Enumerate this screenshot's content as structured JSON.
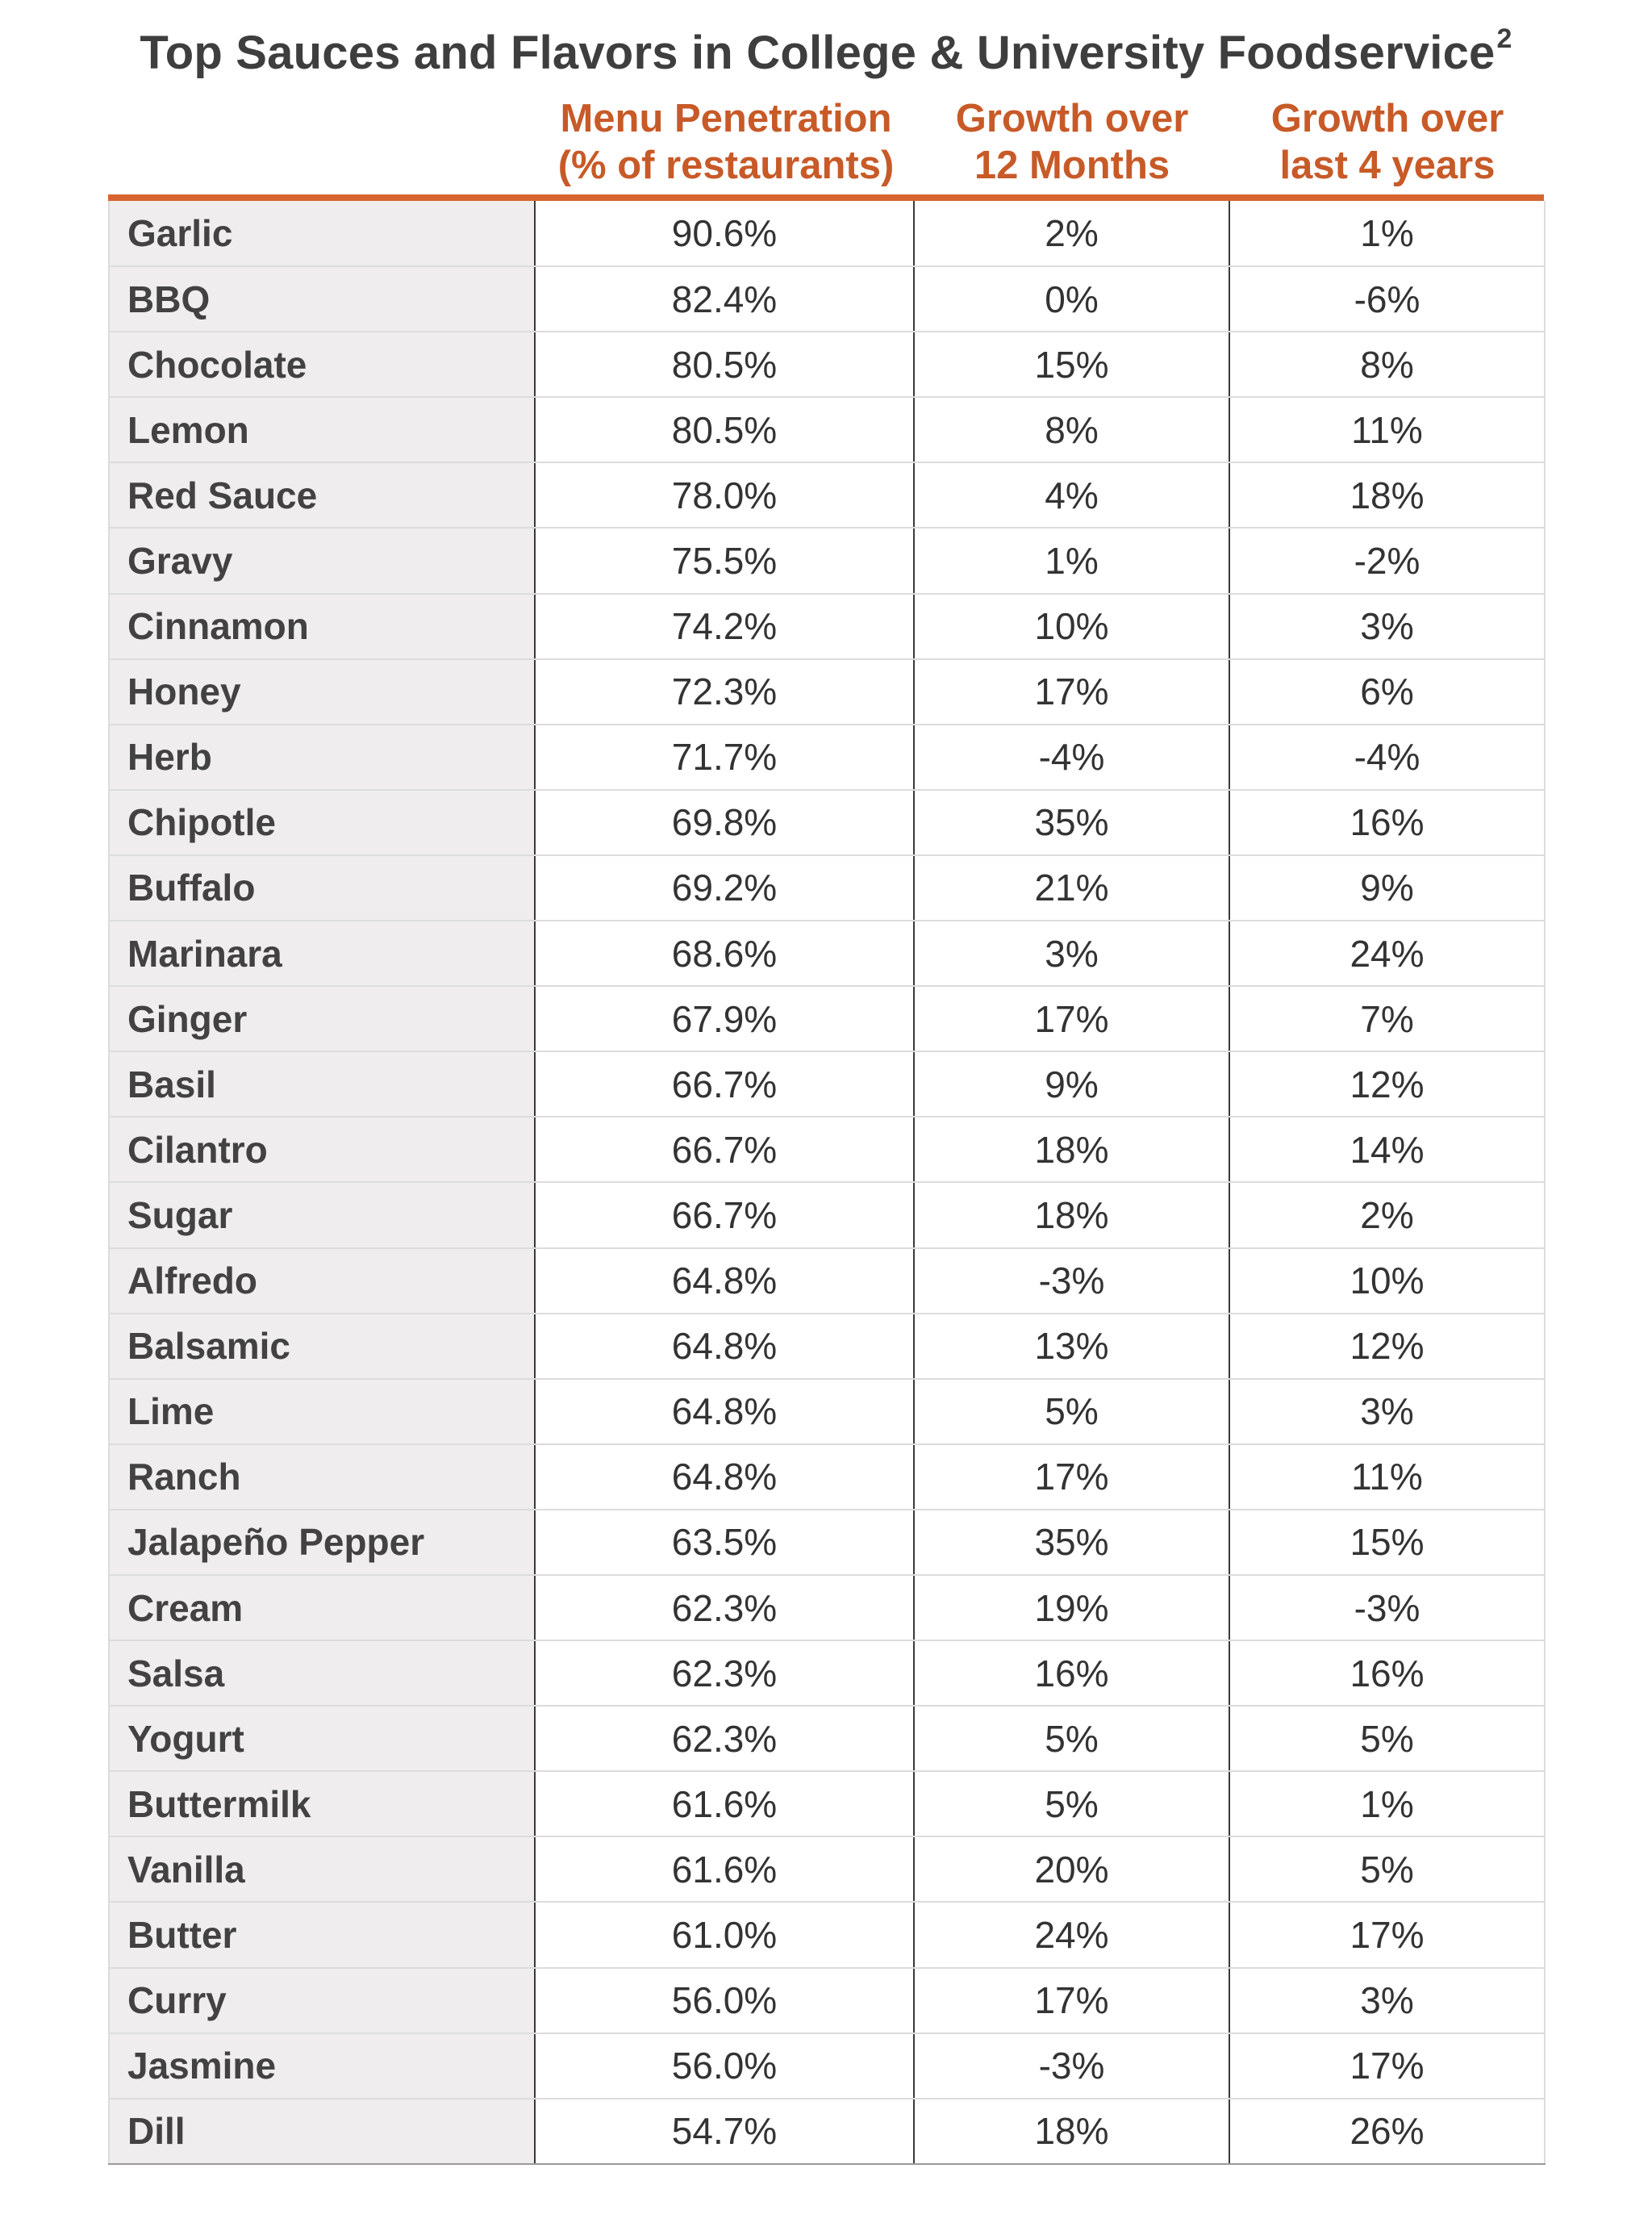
{
  "title": "Top Sauces and Flavors in College & University Foodservice",
  "title_superscript": "2",
  "columns": {
    "menu_penetration": {
      "line1": "Menu Penetration",
      "line2": "(% of restaurants)"
    },
    "growth_12": {
      "line1": "Growth over",
      "line2": "12 Months"
    },
    "growth_4y": {
      "line1": "Growth over",
      "line2": "last 4 years"
    }
  },
  "accent_color": "#d8652f",
  "rows": [
    {
      "name": "Garlic",
      "penetration": "90.6%",
      "growth_12m": "2%",
      "growth_4y": "1%"
    },
    {
      "name": "BBQ",
      "penetration": "82.4%",
      "growth_12m": "0%",
      "growth_4y": "-6%"
    },
    {
      "name": "Chocolate",
      "penetration": "80.5%",
      "growth_12m": "15%",
      "growth_4y": "8%"
    },
    {
      "name": "Lemon",
      "penetration": "80.5%",
      "growth_12m": "8%",
      "growth_4y": "11%"
    },
    {
      "name": "Red Sauce",
      "penetration": "78.0%",
      "growth_12m": "4%",
      "growth_4y": "18%"
    },
    {
      "name": "Gravy",
      "penetration": "75.5%",
      "growth_12m": "1%",
      "growth_4y": "-2%"
    },
    {
      "name": "Cinnamon",
      "penetration": "74.2%",
      "growth_12m": "10%",
      "growth_4y": "3%"
    },
    {
      "name": "Honey",
      "penetration": "72.3%",
      "growth_12m": "17%",
      "growth_4y": "6%"
    },
    {
      "name": "Herb",
      "penetration": "71.7%",
      "growth_12m": "-4%",
      "growth_4y": "-4%"
    },
    {
      "name": "Chipotle",
      "penetration": "69.8%",
      "growth_12m": "35%",
      "growth_4y": "16%"
    },
    {
      "name": "Buffalo",
      "penetration": "69.2%",
      "growth_12m": "21%",
      "growth_4y": "9%"
    },
    {
      "name": "Marinara",
      "penetration": "68.6%",
      "growth_12m": "3%",
      "growth_4y": "24%"
    },
    {
      "name": "Ginger",
      "penetration": "67.9%",
      "growth_12m": "17%",
      "growth_4y": "7%"
    },
    {
      "name": "Basil",
      "penetration": "66.7%",
      "growth_12m": "9%",
      "growth_4y": "12%"
    },
    {
      "name": "Cilantro",
      "penetration": "66.7%",
      "growth_12m": "18%",
      "growth_4y": "14%"
    },
    {
      "name": "Sugar",
      "penetration": "66.7%",
      "growth_12m": "18%",
      "growth_4y": "2%"
    },
    {
      "name": "Alfredo",
      "penetration": "64.8%",
      "growth_12m": "-3%",
      "growth_4y": "10%"
    },
    {
      "name": "Balsamic",
      "penetration": "64.8%",
      "growth_12m": "13%",
      "growth_4y": "12%"
    },
    {
      "name": "Lime",
      "penetration": "64.8%",
      "growth_12m": "5%",
      "growth_4y": "3%"
    },
    {
      "name": "Ranch",
      "penetration": "64.8%",
      "growth_12m": "17%",
      "growth_4y": "11%"
    },
    {
      "name": "Jalapeño Pepper",
      "penetration": "63.5%",
      "growth_12m": "35%",
      "growth_4y": "15%"
    },
    {
      "name": "Cream",
      "penetration": "62.3%",
      "growth_12m": "19%",
      "growth_4y": "-3%"
    },
    {
      "name": "Salsa",
      "penetration": "62.3%",
      "growth_12m": "16%",
      "growth_4y": "16%"
    },
    {
      "name": "Yogurt",
      "penetration": "62.3%",
      "growth_12m": "5%",
      "growth_4y": "5%"
    },
    {
      "name": "Buttermilk",
      "penetration": "61.6%",
      "growth_12m": "5%",
      "growth_4y": "1%"
    },
    {
      "name": "Vanilla",
      "penetration": "61.6%",
      "growth_12m": "20%",
      "growth_4y": "5%"
    },
    {
      "name": "Butter",
      "penetration": "61.0%",
      "growth_12m": "24%",
      "growth_4y": "17%"
    },
    {
      "name": "Curry",
      "penetration": "56.0%",
      "growth_12m": "17%",
      "growth_4y": "3%"
    },
    {
      "name": "Jasmine",
      "penetration": "56.0%",
      "growth_12m": "-3%",
      "growth_4y": "17%"
    },
    {
      "name": "Dill",
      "penetration": "54.7%",
      "growth_12m": "18%",
      "growth_4y": "26%"
    }
  ]
}
